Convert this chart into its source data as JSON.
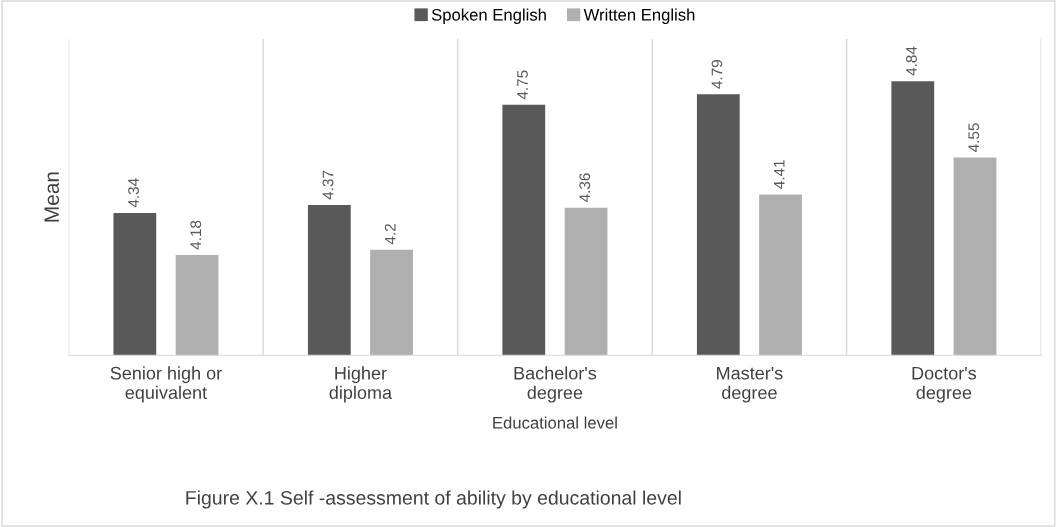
{
  "chart_data": {
    "type": "bar",
    "title": "Figure X.1 Self -assessment of ability by educational level",
    "xlabel": "Educational level",
    "ylabel": "Mean",
    "categories": [
      "Senior high or\nequivalent",
      "Higher\ndiploma",
      "Bachelor's\ndegree",
      "Master's\ndegree",
      "Doctor's\ndegree"
    ],
    "series": [
      {
        "name": "Spoken English",
        "color": "#595959",
        "values": [
          4.34,
          4.37,
          4.75,
          4.79,
          4.84
        ]
      },
      {
        "name": "Written English",
        "color": "#afafaf",
        "values": [
          4.18,
          4.2,
          4.36,
          4.41,
          4.55
        ]
      }
    ],
    "ylim": [
      3.8,
      5.0
    ],
    "tick_labels": "x",
    "data_labels": true,
    "grid": "x",
    "legend": "top"
  }
}
